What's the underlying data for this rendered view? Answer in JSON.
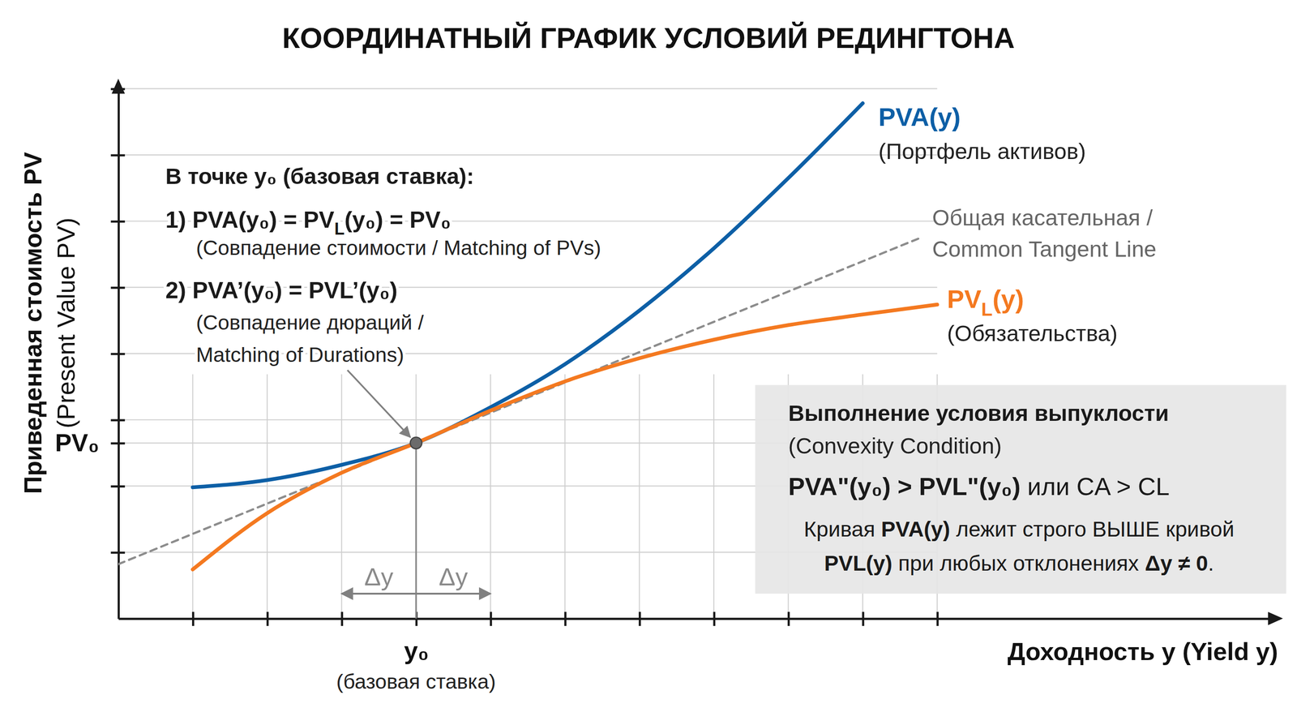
{
  "chart_data": {
    "type": "line",
    "title": "КООРДИНАТНЫЙ ГРАФИК УСЛОВИЙ РЕДИНГТОНА",
    "x_label": "Доходность y (Yield y)",
    "y_label": [
      "Приведенная стоимость PV",
      "(Present Value PV)"
    ],
    "xlim": [
      0,
      15.6
    ],
    "ylim": [
      0,
      8.1
    ],
    "xticks": [
      {
        "value": 1,
        "label": null
      },
      {
        "value": 2,
        "label": null
      },
      {
        "value": 3,
        "label": null
      },
      {
        "value": 4,
        "label": "y₀"
      },
      {
        "value": 5,
        "label": null
      },
      {
        "value": 6,
        "label": null
      },
      {
        "value": 7,
        "label": null
      },
      {
        "value": 8,
        "label": null
      },
      {
        "value": 9,
        "label": null
      },
      {
        "value": 10,
        "label": null
      },
      {
        "value": 11,
        "label": null
      }
    ],
    "yticks": [
      {
        "value": 1,
        "label": null
      },
      {
        "value": 2,
        "label": null
      },
      {
        "value": 2.65,
        "label": "PV₀"
      },
      {
        "value": 3,
        "label": null
      },
      {
        "value": 4,
        "label": null
      },
      {
        "value": 5,
        "label": null
      },
      {
        "value": 6,
        "label": null
      },
      {
        "value": 7,
        "label": null
      },
      {
        "value": 8,
        "label": null
      }
    ],
    "grid": true,
    "x_tick_note": "(базовая ставка)",
    "series": [
      {
        "name": [
          "PVA(y)"
        ],
        "description": "(Портфель активов)",
        "color": "#0d5fa6",
        "line_style": "solid",
        "x": [
          1,
          2,
          3,
          4,
          5,
          6,
          7,
          8,
          9,
          10
        ],
        "values": [
          1.98,
          2.09,
          2.32,
          2.65,
          3.19,
          3.84,
          4.65,
          5.59,
          6.65,
          7.78
        ]
      },
      {
        "name": [
          [
            {
              "text": "PV"
            },
            {
              "text": "L",
              "sub": true
            },
            {
              "text": "(y)"
            }
          ]
        ],
        "description": "(Обязательства)",
        "color": "#f47920",
        "line_style": "solid",
        "x": [
          1,
          2,
          3,
          4,
          5,
          6,
          7,
          8,
          9,
          10,
          11
        ],
        "values": [
          0.74,
          1.59,
          2.2,
          2.65,
          3.14,
          3.58,
          3.93,
          4.21,
          4.43,
          4.59,
          4.74
        ]
      },
      {
        "name": [
          "Общая касательная /",
          "Common Tangent Line"
        ],
        "color": "#8c8c8c",
        "line_style": "dashed",
        "x": [
          0,
          10.8
        ],
        "values": [
          0.82,
          5.76
        ]
      }
    ],
    "point": {
      "x": 4,
      "y": 2.65
    },
    "delta_y": {
      "value": 1,
      "label": "Δy"
    },
    "conditions": {
      "heading": "В точке y₀ (базовая ставка):",
      "items": [
        {
          "formula": [
            {
              "text": "1) PVA(y₀) = PV"
            },
            {
              "text": "L",
              "sub": true
            },
            {
              "text": "(y₀) = PV₀"
            }
          ],
          "note": [
            "(Совпадение стоимости / Matching of PVs)"
          ]
        },
        {
          "formula": [
            {
              "text": "2) PVA’(y₀) = PVL’(y₀)"
            }
          ],
          "note": [
            "(Совпадение дюраций /",
            "Matching of Durations)"
          ]
        }
      ]
    },
    "convexity": {
      "heading": "Выполнение условия выпуклости",
      "subheading": "(Convexity Condition)",
      "formula": [
        {
          "text": "PVA\"(y₀) > PVL\"(y₀)",
          "bold": true
        },
        {
          "text": " или CA > CL"
        }
      ],
      "statement": [
        [
          {
            "text": "Кривая "
          },
          {
            "text": "PVA(y)",
            "bold": true
          },
          {
            "text": " лежит строго ВЫШЕ кривой"
          }
        ],
        [
          {
            "text": "PVL(y)",
            "bold": true
          },
          {
            "text": " при любых отклонениях "
          },
          {
            "text": "Δy ≠ 0",
            "bold": true
          },
          {
            "text": "."
          }
        ]
      ]
    }
  }
}
